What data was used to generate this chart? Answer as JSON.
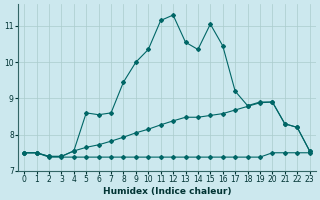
{
  "xlabel": "Humidex (Indice chaleur)",
  "background_color": "#cce8ee",
  "grid_color": "#aacccc",
  "line_color": "#006666",
  "xlim": [
    -0.5,
    23.5
  ],
  "ylim": [
    7.0,
    11.6
  ],
  "xticks": [
    0,
    1,
    2,
    3,
    4,
    5,
    6,
    7,
    8,
    9,
    10,
    11,
    12,
    13,
    14,
    15,
    16,
    17,
    18,
    19,
    20,
    21,
    22,
    23
  ],
  "yticks": [
    7,
    8,
    9,
    10,
    11
  ],
  "curve1_x": [
    0,
    1,
    2,
    3,
    4,
    5,
    6,
    7,
    8,
    9,
    10,
    11,
    12,
    13,
    14,
    15,
    16,
    17,
    18,
    19,
    20,
    21,
    22,
    23
  ],
  "curve1_y": [
    7.5,
    7.5,
    7.4,
    7.4,
    7.55,
    8.6,
    8.55,
    8.6,
    9.45,
    10.0,
    10.35,
    11.15,
    11.3,
    10.55,
    10.35,
    11.05,
    10.45,
    9.2,
    8.8,
    8.9,
    8.9,
    8.3,
    8.2,
    7.55
  ],
  "curve2_x": [
    0,
    1,
    2,
    3,
    4,
    5,
    6,
    7,
    8,
    9,
    10,
    11,
    12,
    13,
    14,
    15,
    16,
    17,
    18,
    19,
    20,
    21,
    22,
    23
  ],
  "curve2_y": [
    7.5,
    7.5,
    7.4,
    7.4,
    7.55,
    7.65,
    7.72,
    7.82,
    7.93,
    8.05,
    8.15,
    8.27,
    8.38,
    8.48,
    8.48,
    8.53,
    8.58,
    8.68,
    8.78,
    8.88,
    8.9,
    8.3,
    8.2,
    7.55
  ],
  "curve3_x": [
    0,
    1,
    2,
    3,
    4,
    5,
    6,
    7,
    8,
    9,
    10,
    11,
    12,
    13,
    14,
    15,
    16,
    17,
    18,
    19,
    20,
    21,
    22,
    23
  ],
  "curve3_y": [
    7.5,
    7.5,
    7.38,
    7.38,
    7.38,
    7.38,
    7.38,
    7.38,
    7.38,
    7.38,
    7.38,
    7.38,
    7.38,
    7.38,
    7.38,
    7.38,
    7.38,
    7.38,
    7.38,
    7.38,
    7.5,
    7.5,
    7.5,
    7.5
  ]
}
